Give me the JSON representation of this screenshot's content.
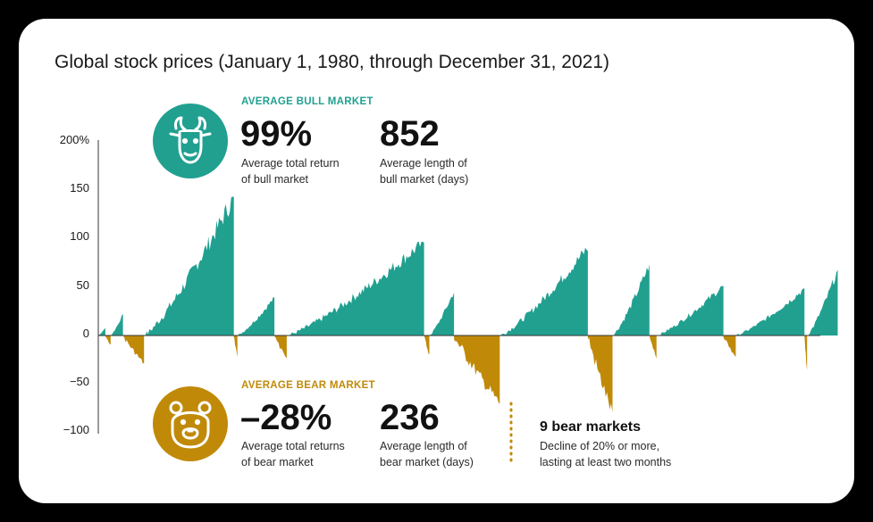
{
  "title": "Global stock prices (January 1, 1980, through December 31, 2021)",
  "colors": {
    "bull": "#21a090",
    "bear": "#c08a08",
    "axis": "#333333",
    "text": "#111111"
  },
  "bull_panel": {
    "heading": "AVERAGE BULL MARKET",
    "icon": "bull-icon",
    "stat1": {
      "value": "99%",
      "label_line1": "Average total return",
      "label_line2": "of bull market"
    },
    "stat2": {
      "value": "852",
      "label_line1": "Average length of",
      "label_line2": "bull market (days)"
    }
  },
  "bear_panel": {
    "heading": "AVERAGE BEAR MARKET",
    "icon": "bear-icon",
    "stat1": {
      "value": "–28%",
      "label_line1": "Average total returns",
      "label_line2": "of bear market"
    },
    "stat2": {
      "value": "236",
      "label_line1": "Average length of",
      "label_line2": "bear market (days)"
    }
  },
  "note": {
    "title": "9 bear markets",
    "line1": "Decline of 20% or more,",
    "line2": "lasting at least two months"
  },
  "chart_data": {
    "type": "area",
    "title": "Global stock prices (January 1, 1980, through December 31, 2021)",
    "xlabel": "",
    "ylabel": "",
    "ylim": [
      -100,
      200
    ],
    "yticks": [
      "200%",
      "150",
      "100",
      "50",
      "0",
      "−50",
      "−100"
    ],
    "ytick_values": [
      200,
      150,
      100,
      50,
      0,
      -50,
      -100
    ],
    "x_range": [
      1980,
      2021
    ],
    "grid": false,
    "segments": [
      {
        "kind": "bull",
        "x0": 1980.0,
        "x1": 1980.4,
        "peak": 8
      },
      {
        "kind": "bear",
        "x0": 1980.4,
        "x1": 1980.7,
        "peak": -10
      },
      {
        "kind": "bull",
        "x0": 1980.7,
        "x1": 1981.4,
        "peak": 22
      },
      {
        "kind": "bear",
        "x0": 1981.4,
        "x1": 1982.6,
        "peak": -29
      },
      {
        "kind": "bull",
        "x0": 1982.6,
        "x1": 1987.7,
        "peak": 142
      },
      {
        "kind": "bear",
        "x0": 1987.7,
        "x1": 1987.9,
        "peak": -24
      },
      {
        "kind": "bull",
        "x0": 1987.9,
        "x1": 1990.0,
        "peak": 39
      },
      {
        "kind": "bear",
        "x0": 1990.0,
        "x1": 1990.7,
        "peak": -25
      },
      {
        "kind": "bull",
        "x0": 1990.7,
        "x1": 1998.5,
        "peak": 96
      },
      {
        "kind": "bear",
        "x0": 1998.5,
        "x1": 1998.8,
        "peak": -20
      },
      {
        "kind": "bull",
        "x0": 1998.8,
        "x1": 2000.2,
        "peak": 45
      },
      {
        "kind": "bear",
        "x0": 2000.2,
        "x1": 2002.8,
        "peak": -70
      },
      {
        "kind": "bull",
        "x0": 2002.8,
        "x1": 2007.8,
        "peak": 90
      },
      {
        "kind": "bear",
        "x0": 2007.8,
        "x1": 2009.2,
        "peak": -80
      },
      {
        "kind": "bull",
        "x0": 2009.2,
        "x1": 2011.3,
        "peak": 73
      },
      {
        "kind": "bear",
        "x0": 2011.3,
        "x1": 2011.7,
        "peak": -24
      },
      {
        "kind": "bull",
        "x0": 2011.7,
        "x1": 2015.5,
        "peak": 51
      },
      {
        "kind": "bear",
        "x0": 2015.5,
        "x1": 2016.2,
        "peak": -23
      },
      {
        "kind": "bull",
        "x0": 2016.2,
        "x1": 2020.1,
        "peak": 48
      },
      {
        "kind": "bear",
        "x0": 2020.1,
        "x1": 2020.25,
        "peak": -37
      },
      {
        "kind": "bull",
        "x0": 2020.25,
        "x1": 2021.99,
        "peak": 67
      }
    ]
  }
}
